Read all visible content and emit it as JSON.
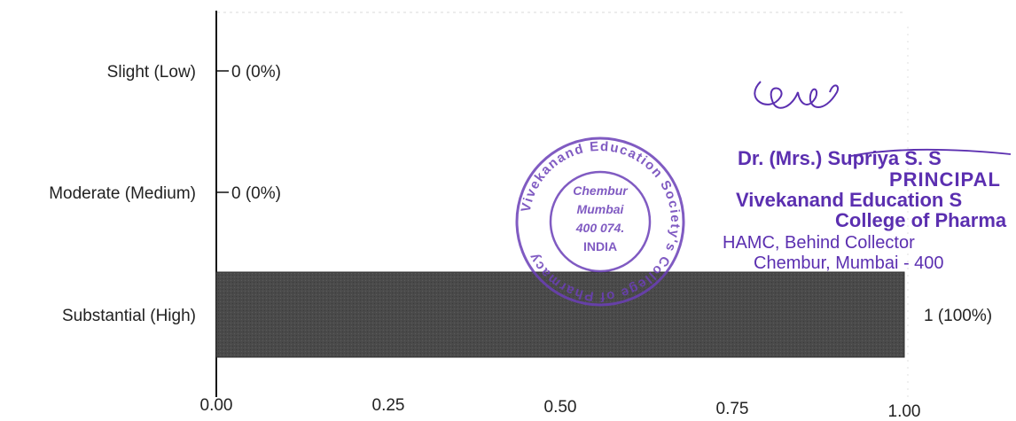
{
  "chart_data": {
    "type": "bar",
    "orientation": "horizontal",
    "categories": [
      "Slight (Low)",
      "Moderate (Medium)",
      "Substantial (High)"
    ],
    "values": [
      0,
      0,
      1
    ],
    "data_labels": [
      "0 (0%)",
      "0 (0%)",
      "1 (100%)"
    ],
    "xlim": [
      0,
      1
    ],
    "x_ticks": [
      "0.00",
      "0.25",
      "0.50",
      "0.75",
      "1.00"
    ],
    "title": "",
    "xlabel": "",
    "ylabel": "",
    "grid": false,
    "legend": "none",
    "bar_color": "#4a4a4a"
  },
  "stamp": {
    "ring_text": "Vivekanand Education Society's College of Pharmacy",
    "center_lines": [
      "Chembur",
      "Mumbai",
      "400 074.",
      "INDIA"
    ],
    "color": "#6b3fb8"
  },
  "signature_block": {
    "name": "Dr. (Mrs.) Supriya S. S",
    "title": "PRINCIPAL",
    "org1": "Vivekanand Education S",
    "org2": "College of Pharma",
    "addr1": "HAMC, Behind Collector",
    "addr2": "Chembur, Mumbai - 400",
    "color": "#5b2fb0"
  }
}
